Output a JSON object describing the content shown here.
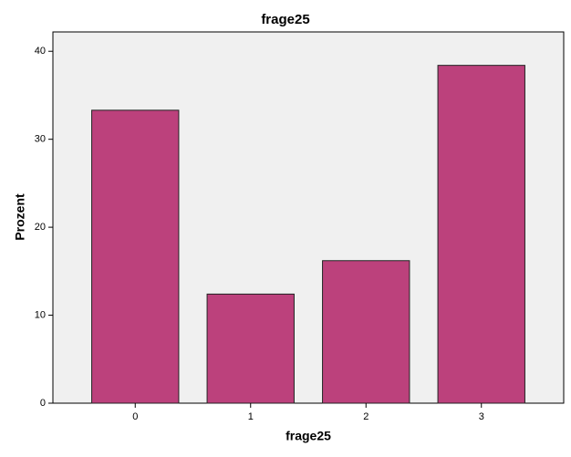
{
  "chart_data": {
    "type": "bar",
    "title": "frage25",
    "x_label": "frage25",
    "y_label": "Prozent",
    "categories": [
      "0",
      "1",
      "2",
      "3"
    ],
    "values": [
      33.3,
      12.4,
      16.2,
      38.4
    ],
    "color": "#bc417c",
    "ylim": [
      0,
      42.2
    ],
    "yticks": [
      0,
      10,
      20,
      30,
      40
    ],
    "grid": false
  }
}
